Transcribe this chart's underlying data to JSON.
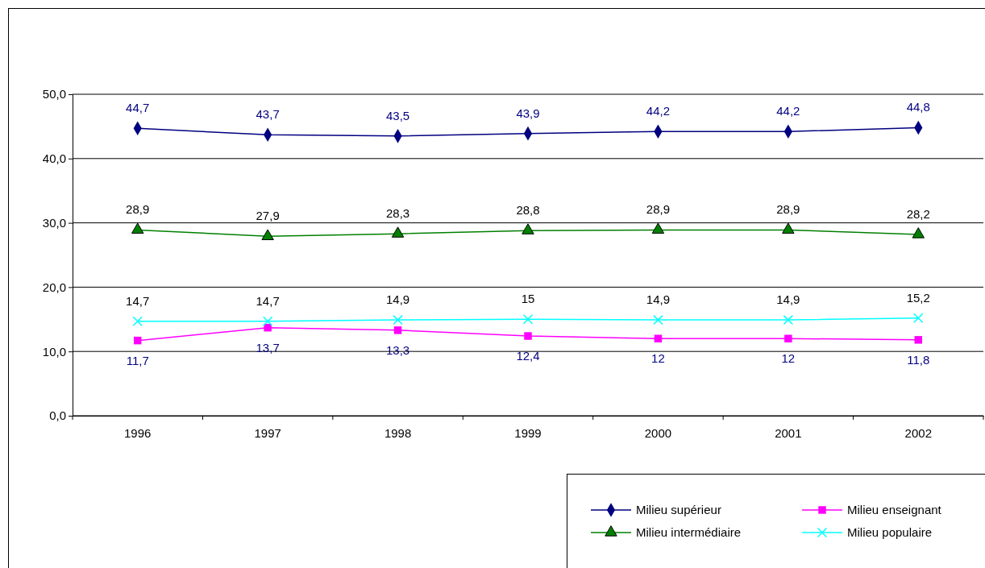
{
  "chart_data": {
    "type": "line",
    "categories": [
      "1996",
      "1997",
      "1998",
      "1999",
      "2000",
      "2001",
      "2002"
    ],
    "series": [
      {
        "name": "Milieu supérieur",
        "color": "#000080",
        "marker": "diamond",
        "values": [
          44.7,
          43.7,
          43.5,
          43.9,
          44.2,
          44.2,
          44.8
        ],
        "value_labels": [
          "44,7",
          "43,7",
          "43,5",
          "43,9",
          "44,2",
          "44,2",
          "44,8"
        ]
      },
      {
        "name": "Milieu enseignant",
        "color": "#ff00ff",
        "marker": "square",
        "values": [
          11.7,
          13.7,
          13.3,
          12.4,
          12,
          12,
          11.8
        ],
        "value_labels": [
          "11,7",
          "13,7",
          "13,3",
          "12,4",
          "12",
          "12",
          "11,8"
        ]
      },
      {
        "name": "Milieu intermédiaire",
        "color": "#008000",
        "marker": "triangle",
        "values": [
          28.9,
          27.9,
          28.3,
          28.8,
          28.9,
          28.9,
          28.2
        ],
        "value_labels": [
          "28,9",
          "27,9",
          "28,3",
          "28,8",
          "28,9",
          "28,9",
          "28,2"
        ]
      },
      {
        "name": "Milieu populaire",
        "color": "#00ffff",
        "marker": "cross",
        "values": [
          14.7,
          14.7,
          14.9,
          15,
          14.9,
          14.9,
          15.2
        ],
        "value_labels": [
          "14,7",
          "14,7",
          "14,9",
          "15",
          "14,9",
          "14,9",
          "15,2"
        ]
      }
    ],
    "ylim": [
      0,
      50
    ],
    "yticks": [
      {
        "value": 0,
        "label": "0,0"
      },
      {
        "value": 10,
        "label": "10,0"
      },
      {
        "value": 20,
        "label": "20,0"
      },
      {
        "value": 30,
        "label": "30,0"
      },
      {
        "value": 40,
        "label": "40,0"
      },
      {
        "value": 50,
        "label": "50,0"
      }
    ],
    "grid": "y",
    "legend": "bottom right",
    "line_style": "solid"
  }
}
